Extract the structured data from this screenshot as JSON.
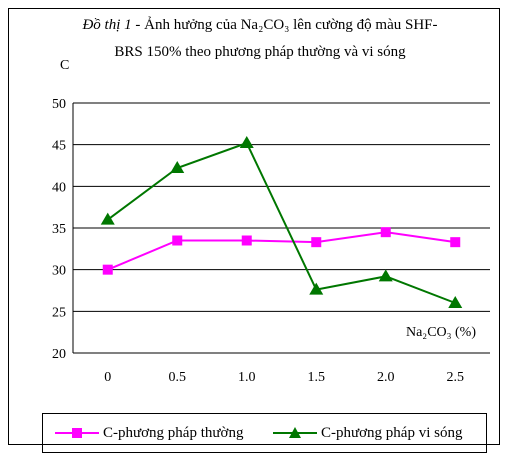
{
  "title": {
    "lead": "Đồ thị 1",
    "rest_line1": " - Ảnh hưởng của Na₂CO₃ lên cường độ màu SHF-",
    "line2": "BRS 150% theo phương pháp thường và vi sóng"
  },
  "chart_data": {
    "type": "line",
    "title": "Đồ thị 1 - Ảnh hưởng của Na₂CO₃ lên cường độ màu SHF-BRS 150% theo phương pháp thường và vi sóng",
    "ylabel": "C",
    "xlabel": "Na₂CO₃ (%)",
    "categories": [
      "0",
      "0.5",
      "1.0",
      "1.5",
      "2.0",
      "2.5"
    ],
    "ylim": [
      20,
      50
    ],
    "yticks": [
      20,
      25,
      30,
      35,
      40,
      45,
      50
    ],
    "grid": true,
    "legend_position": "bottom",
    "series": [
      {
        "name": "C-phương pháp thường",
        "values": [
          30.0,
          33.5,
          33.5,
          33.3,
          34.5,
          33.3
        ],
        "color": "#ff00ff",
        "marker": "square"
      },
      {
        "name": "C-phương pháp vi sóng",
        "values": [
          36.0,
          42.2,
          45.2,
          27.6,
          29.2,
          26.0
        ],
        "color": "#007700",
        "marker": "triangle"
      }
    ]
  }
}
